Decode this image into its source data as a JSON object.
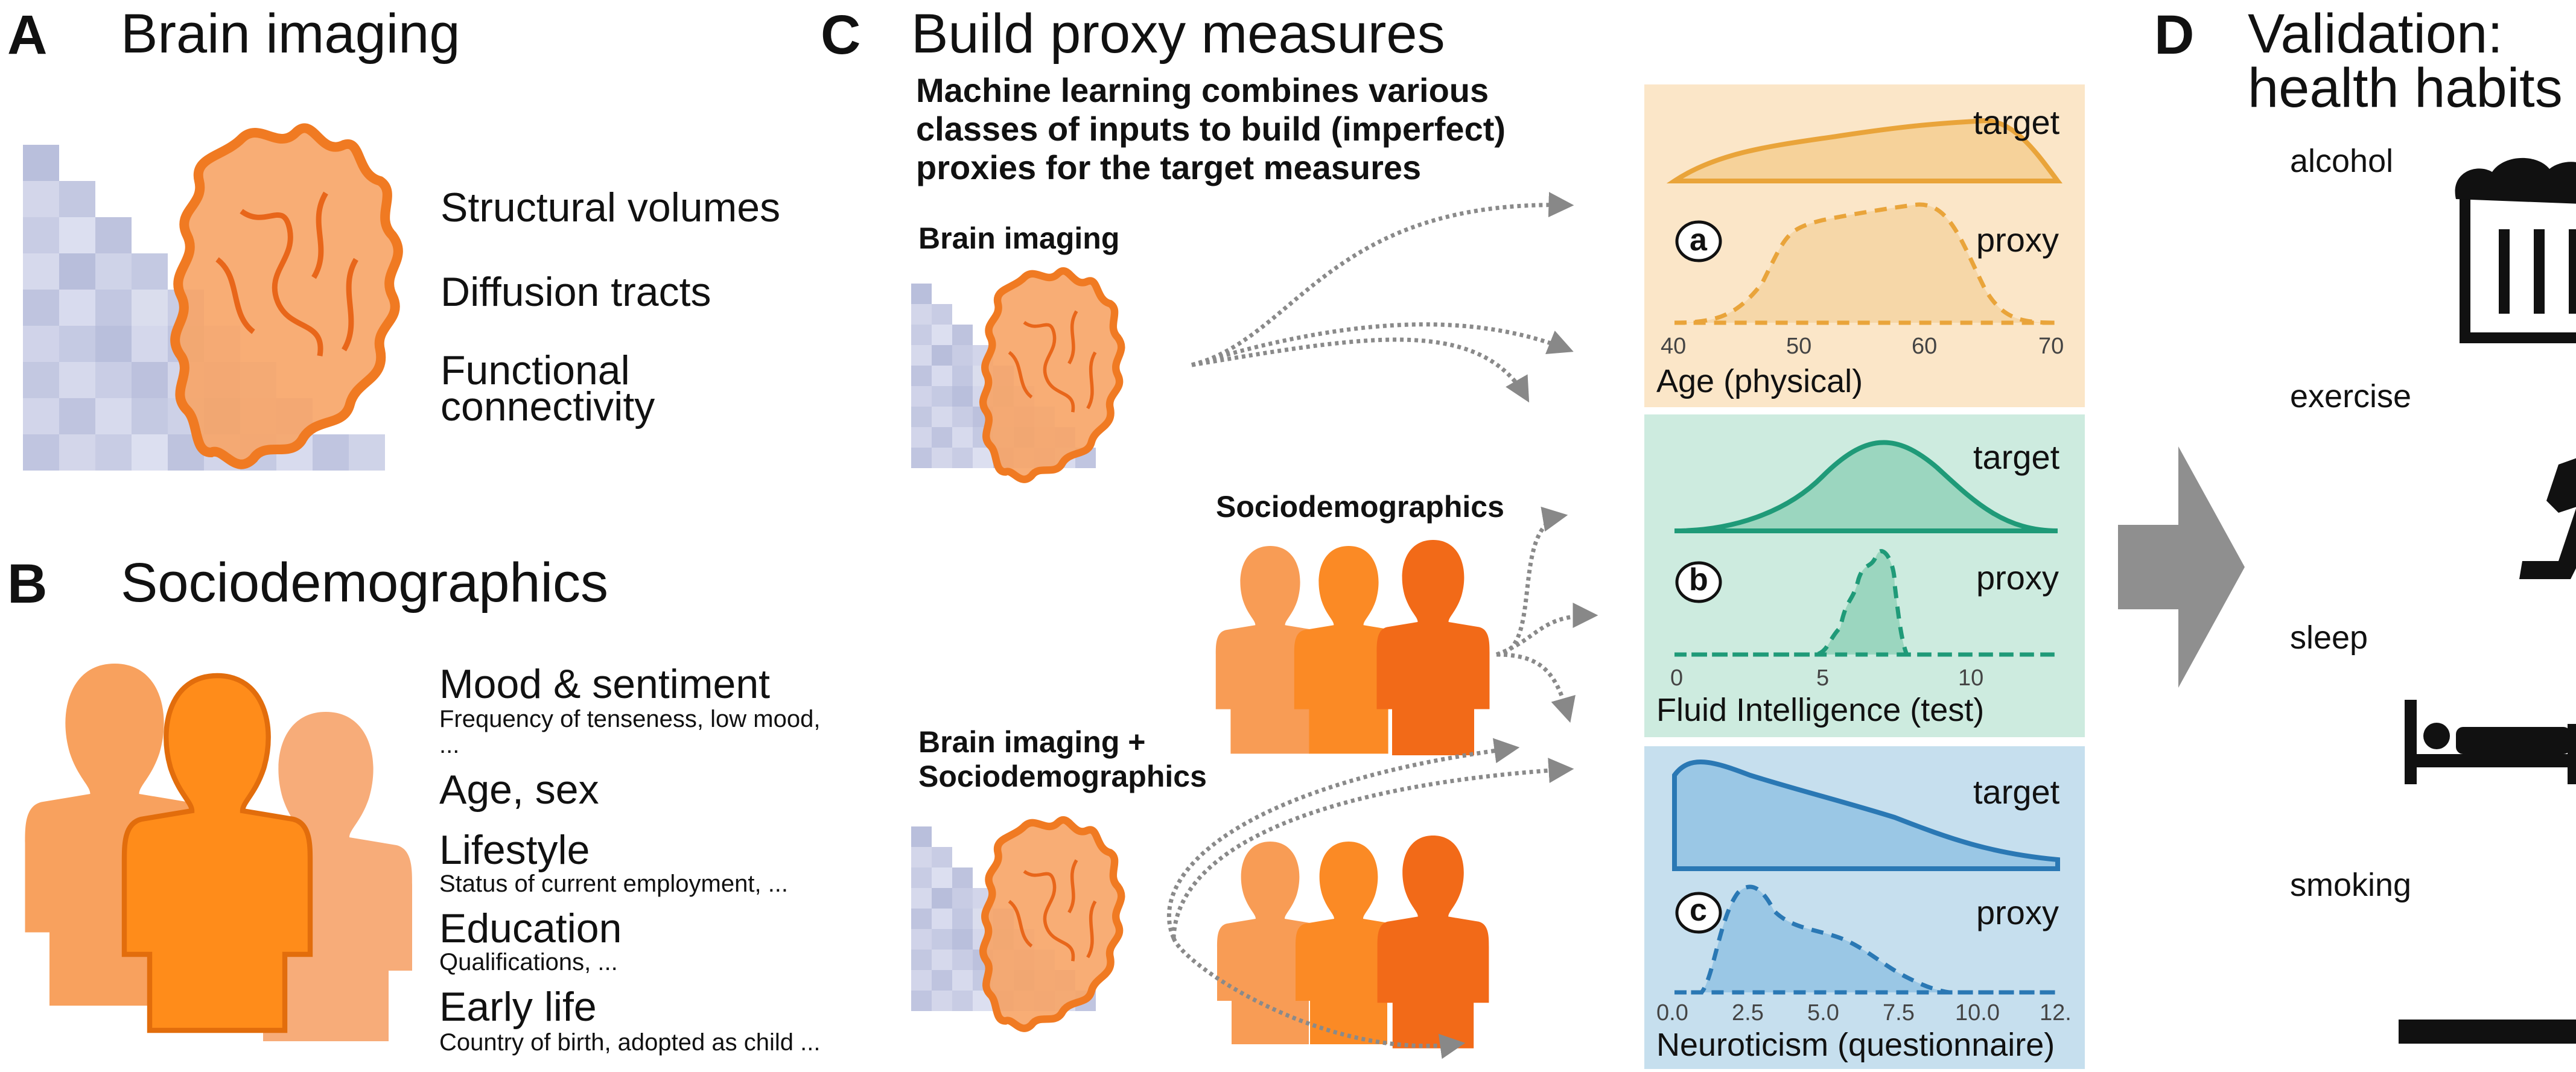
{
  "panel_a": {
    "letter": "A",
    "title": "Brain imaging",
    "items": [
      "Structural volumes",
      "Diffusion tracts",
      "Functional",
      "connectivity"
    ]
  },
  "panel_b": {
    "letter": "B",
    "title": "Sociodemographics",
    "items": [
      {
        "main": "Mood & sentiment",
        "sub": "Frequency of tenseness, low mood,",
        "sub2": "..."
      },
      {
        "main": "Age, sex",
        "sub": ""
      },
      {
        "main": "Lifestyle",
        "sub": "Status of current employment, ..."
      },
      {
        "main": "Education",
        "sub": "Qualifications, ..."
      },
      {
        "main": "Early life",
        "sub": "Country of birth, adopted as child ..."
      }
    ]
  },
  "panel_c": {
    "letter": "C",
    "title": "Build proxy measures",
    "description": [
      "Machine learning combines various",
      "classes of inputs to build (imperfect)",
      "proxies for the target measures"
    ],
    "inputs": {
      "brain": "Brain imaging",
      "socio": "Sociodemographics",
      "combined_1": "Brain imaging +",
      "combined_2": "Sociodemographics"
    },
    "target_label": "target",
    "proxy_label": "proxy",
    "plots": [
      {
        "badge": "a",
        "axis_name": "Age (physical)",
        "ticks": [
          "40",
          "50",
          "60",
          "70"
        ],
        "bg": "#fbe6c8",
        "color": "#e9a43a"
      },
      {
        "badge": "b",
        "axis_name": "Fluid Intelligence (test)",
        "ticks": [
          "0",
          "5",
          "10"
        ],
        "bg": "#cdebdf",
        "color": "#1f9a78"
      },
      {
        "badge": "c",
        "axis_name": "Neuroticism (questionnaire)",
        "ticks": [
          "0.0",
          "2.5",
          "5.0",
          "7.5",
          "10.0",
          "12."
        ],
        "bg": "#c6dfee",
        "color": "#2a78b4"
      }
    ]
  },
  "panel_d": {
    "letter": "D",
    "title_1": "Validation:",
    "title_2": "health habits",
    "habits": [
      "alcohol",
      "exercise",
      "sleep",
      "smoking"
    ],
    "icons": [
      "beer-mug-icon",
      "running-person-icon",
      "bed-icon",
      "smoking-icon"
    ]
  }
}
